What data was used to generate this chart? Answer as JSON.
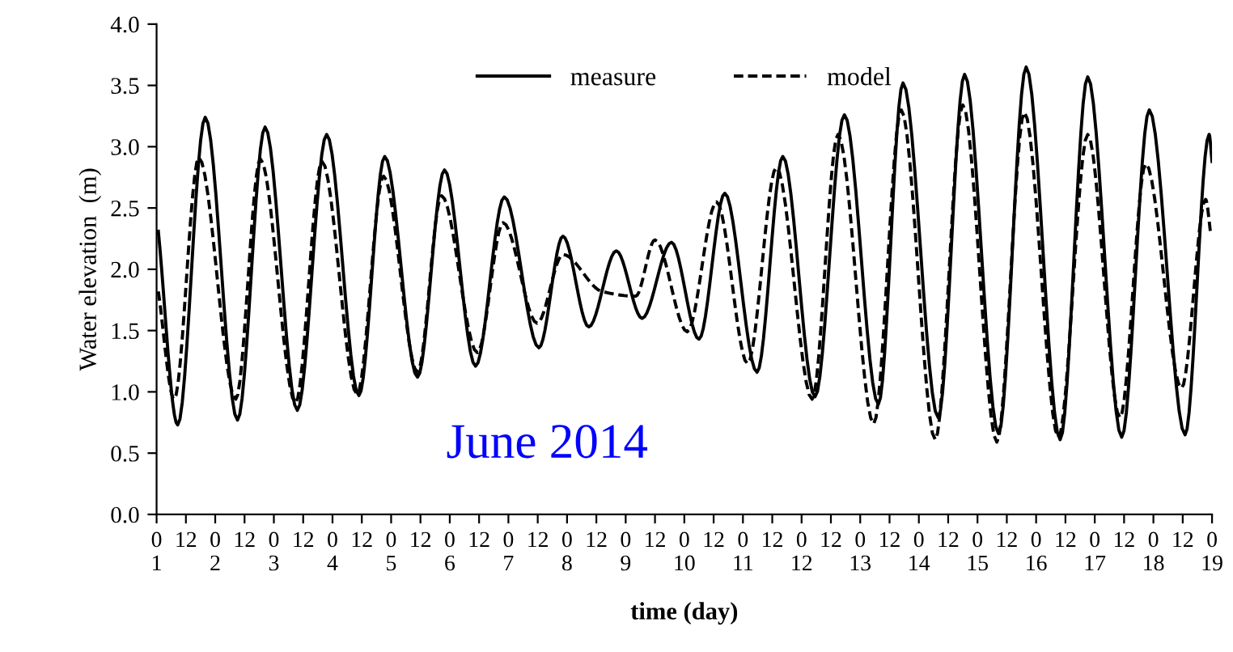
{
  "chart_data": {
    "type": "line",
    "xlabel": "time (day)",
    "ylabel": "Water elevation  (m)",
    "annotations": [
      "June 2014"
    ],
    "series": [
      {
        "name": "measure",
        "color": "#000000",
        "line_style": "solid",
        "x": [
          "2014-06-01T00:43",
          "2014-06-01T08:38",
          "2014-06-01T19:55",
          "2014-06-02T09:07",
          "2014-06-02T20:24",
          "2014-06-03T09:36",
          "2014-06-03T21:36",
          "2014-06-04T10:48",
          "2014-06-04T21:22",
          "2014-06-05T10:48",
          "2014-06-05T21:50",
          "2014-06-06T10:34",
          "2014-06-06T22:19",
          "2014-06-07T12:29",
          "2014-06-07T22:19",
          "2014-06-08T08:53",
          "2014-06-08T20:10",
          "2014-06-09T06:43",
          "2014-06-09T18:43",
          "2014-06-10T06:00",
          "2014-06-10T16:34",
          "2014-06-11T05:46",
          "2014-06-11T16:19",
          "2014-06-12T05:31",
          "2014-06-12T17:31",
          "2014-06-13T07:26",
          "2014-06-13T17:31",
          "2014-06-14T07:55",
          "2014-06-14T18:43",
          "2014-06-15T08:38",
          "2014-06-15T19:55",
          "2014-06-16T09:50",
          "2014-06-16T21:07",
          "2014-06-17T11:02",
          "2014-06-17T22:19",
          "2014-06-18T12:58",
          "2014-06-18T22:48",
          "2014-06-19T00:00"
        ],
        "values": [
          2.31,
          0.73,
          3.24,
          0.77,
          3.16,
          0.85,
          3.1,
          0.97,
          2.92,
          1.12,
          2.81,
          1.21,
          2.59,
          1.36,
          2.27,
          1.53,
          2.15,
          1.6,
          2.22,
          1.43,
          2.62,
          1.16,
          2.92,
          0.96,
          3.26,
          0.9,
          3.52,
          0.79,
          3.59,
          0.66,
          3.65,
          0.61,
          3.57,
          0.63,
          3.3,
          0.65,
          3.1,
          2.88
        ]
      },
      {
        "name": "model",
        "color": "#000000",
        "line_style": "dashed",
        "x": [
          "2014-06-01T00:43",
          "2014-06-01T07:12",
          "2014-06-01T17:17",
          "2014-06-02T08:24",
          "2014-06-02T18:29",
          "2014-06-03T08:53",
          "2014-06-03T19:41",
          "2014-06-04T10:05",
          "2014-06-04T20:53",
          "2014-06-05T10:48",
          "2014-06-05T20:38",
          "2014-06-06T11:17",
          "2014-06-06T21:50",
          "2014-06-07T11:46",
          "2014-06-07T22:19",
          "2014-06-08T14:10",
          "2014-06-09T04:05",
          "2014-06-09T12:00",
          "2014-06-10T01:12",
          "2014-06-10T13:12",
          "2014-06-11T01:55",
          "2014-06-11T13:41",
          "2014-06-12T04:19",
          "2014-06-12T14:53",
          "2014-06-13T05:31",
          "2014-06-13T16:48",
          "2014-06-14T06:43",
          "2014-06-14T18:00",
          "2014-06-15T07:55",
          "2014-06-15T19:12",
          "2014-06-16T09:07",
          "2014-06-16T21:07",
          "2014-06-17T10:19",
          "2014-06-17T20:53",
          "2014-06-18T11:31",
          "2014-06-18T21:22",
          "2014-06-18T23:31"
        ],
        "values": [
          1.82,
          0.94,
          2.91,
          0.94,
          2.9,
          0.91,
          2.88,
          0.98,
          2.76,
          1.16,
          2.6,
          1.32,
          2.38,
          1.56,
          2.12,
          1.82,
          1.78,
          2.24,
          1.49,
          2.55,
          1.23,
          2.83,
          0.94,
          3.1,
          0.74,
          3.3,
          0.61,
          3.34,
          0.59,
          3.28,
          0.63,
          3.1,
          0.79,
          2.86,
          1.03,
          2.57,
          2.28
        ]
      }
    ],
    "xlim": [
      "2014-06-01T00:00",
      "2014-06-19T00:00"
    ],
    "xticks": [
      {
        "value": "2014-06-01T00:00",
        "label": "0\n1"
      },
      {
        "value": "2014-06-01T12:00",
        "label": "12"
      },
      {
        "value": "2014-06-02T00:00",
        "label": "0\n2"
      },
      {
        "value": "2014-06-02T12:00",
        "label": "12"
      },
      {
        "value": "2014-06-03T00:00",
        "label": "0\n3"
      },
      {
        "value": "2014-06-03T12:00",
        "label": "12"
      },
      {
        "value": "2014-06-04T00:00",
        "label": "0\n4"
      },
      {
        "value": "2014-06-04T12:00",
        "label": "12"
      },
      {
        "value": "2014-06-05T00:00",
        "label": "0\n5"
      },
      {
        "value": "2014-06-05T12:00",
        "label": "12"
      },
      {
        "value": "2014-06-06T00:00",
        "label": "0\n6"
      },
      {
        "value": "2014-06-06T12:00",
        "label": "12"
      },
      {
        "value": "2014-06-07T00:00",
        "label": "0\n7"
      },
      {
        "value": "2014-06-07T12:00",
        "label": "12"
      },
      {
        "value": "2014-06-08T00:00",
        "label": "0\n8"
      },
      {
        "value": "2014-06-08T12:00",
        "label": "12"
      },
      {
        "value": "2014-06-09T00:00",
        "label": "0\n9"
      },
      {
        "value": "2014-06-09T12:00",
        "label": "12"
      },
      {
        "value": "2014-06-10T00:00",
        "label": "0\n10"
      },
      {
        "value": "2014-06-10T12:00",
        "label": "12"
      },
      {
        "value": "2014-06-11T00:00",
        "label": "0\n11"
      },
      {
        "value": "2014-06-11T12:00",
        "label": "12"
      },
      {
        "value": "2014-06-12T00:00",
        "label": "0\n12"
      },
      {
        "value": "2014-06-12T12:00",
        "label": "12"
      },
      {
        "value": "2014-06-13T00:00",
        "label": "0\n13"
      },
      {
        "value": "2014-06-13T12:00",
        "label": "12"
      },
      {
        "value": "2014-06-14T00:00",
        "label": "0\n14"
      },
      {
        "value": "2014-06-14T12:00",
        "label": "12"
      },
      {
        "value": "2014-06-15T00:00",
        "label": "0\n15"
      },
      {
        "value": "2014-06-15T12:00",
        "label": "12"
      },
      {
        "value": "2014-06-16T00:00",
        "label": "0\n16"
      },
      {
        "value": "2014-06-16T12:00",
        "label": "12"
      },
      {
        "value": "2014-06-17T00:00",
        "label": "0\n17"
      },
      {
        "value": "2014-06-17T12:00",
        "label": "12"
      },
      {
        "value": "2014-06-18T00:00",
        "label": "0\n18"
      },
      {
        "value": "2014-06-18T12:00",
        "label": "12"
      },
      {
        "value": "2014-06-19T00:00",
        "label": "0\n19"
      }
    ],
    "ylim": [
      0,
      4
    ],
    "yticks": [
      {
        "value": 0,
        "label": "0.0"
      },
      {
        "value": 0.5,
        "label": "0.5"
      },
      {
        "value": 1,
        "label": "1.0"
      },
      {
        "value": 1.5,
        "label": "1.5"
      },
      {
        "value": 2,
        "label": "2.0"
      },
      {
        "value": 2.5,
        "label": "2.5"
      },
      {
        "value": 3,
        "label": "3.0"
      },
      {
        "value": 3.5,
        "label": "3.5"
      },
      {
        "value": 4,
        "label": "4.0"
      }
    ],
    "grid": false,
    "legend": "top",
    "marker": "none"
  }
}
